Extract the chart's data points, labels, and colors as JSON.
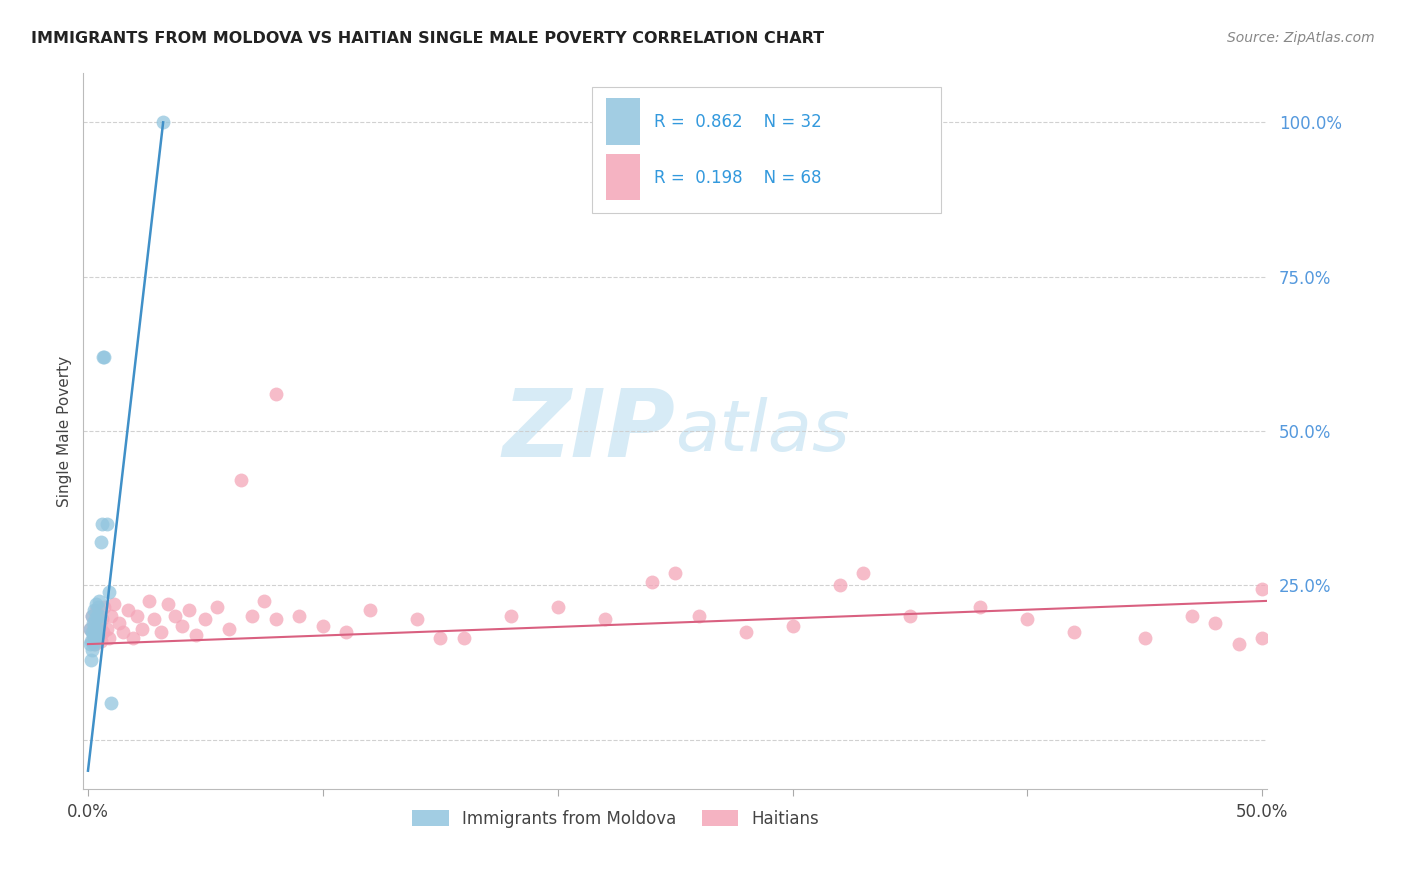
{
  "title": "IMMIGRANTS FROM MOLDOVA VS HAITIAN SINGLE MALE POVERTY CORRELATION CHART",
  "source": "Source: ZipAtlas.com",
  "ylabel": "Single Male Poverty",
  "xlim": [
    -0.002,
    0.502
  ],
  "ylim": [
    -0.08,
    1.08
  ],
  "yticks": [
    0.0,
    0.25,
    0.5,
    0.75,
    1.0
  ],
  "ytick_labels": [
    "",
    "25.0%",
    "50.0%",
    "75.0%",
    "100.0%"
  ],
  "xticks": [
    0.0,
    0.1,
    0.2,
    0.3,
    0.4,
    0.5
  ],
  "xtick_labels": [
    "0.0%",
    "",
    "",
    "",
    "",
    "50.0%"
  ],
  "blue_color": "#92c5de",
  "pink_color": "#f4a6b8",
  "blue_line_color": "#4090c8",
  "pink_line_color": "#d96080",
  "watermark_color": "#d0e8f5",
  "moldova_x": [
    0.0008,
    0.001,
    0.0012,
    0.0014,
    0.0015,
    0.0016,
    0.0018,
    0.002,
    0.0022,
    0.0024,
    0.0025,
    0.0026,
    0.0028,
    0.003,
    0.0032,
    0.0034,
    0.0036,
    0.0038,
    0.004,
    0.0042,
    0.0044,
    0.0046,
    0.0048,
    0.005,
    0.0055,
    0.006,
    0.0065,
    0.007,
    0.008,
    0.009,
    0.01,
    0.032
  ],
  "moldova_y": [
    0.18,
    0.155,
    0.13,
    0.16,
    0.2,
    0.175,
    0.145,
    0.17,
    0.19,
    0.155,
    0.21,
    0.18,
    0.165,
    0.195,
    0.175,
    0.22,
    0.16,
    0.2,
    0.18,
    0.215,
    0.17,
    0.19,
    0.225,
    0.2,
    0.32,
    0.35,
    0.62,
    0.62,
    0.35,
    0.24,
    0.06,
    1.0
  ],
  "haiti_x": [
    0.001,
    0.0015,
    0.0018,
    0.0022,
    0.0025,
    0.0028,
    0.0032,
    0.0035,
    0.004,
    0.0045,
    0.005,
    0.0055,
    0.006,
    0.0065,
    0.007,
    0.008,
    0.009,
    0.01,
    0.011,
    0.013,
    0.015,
    0.017,
    0.019,
    0.021,
    0.023,
    0.026,
    0.028,
    0.031,
    0.034,
    0.037,
    0.04,
    0.043,
    0.046,
    0.05,
    0.055,
    0.06,
    0.065,
    0.07,
    0.075,
    0.08,
    0.09,
    0.1,
    0.11,
    0.12,
    0.14,
    0.16,
    0.18,
    0.2,
    0.22,
    0.24,
    0.26,
    0.28,
    0.3,
    0.32,
    0.35,
    0.38,
    0.4,
    0.42,
    0.45,
    0.47,
    0.48,
    0.49,
    0.5,
    0.5,
    0.33,
    0.25,
    0.15,
    0.08
  ],
  "haiti_y": [
    0.18,
    0.16,
    0.2,
    0.175,
    0.19,
    0.155,
    0.21,
    0.18,
    0.17,
    0.2,
    0.185,
    0.16,
    0.195,
    0.175,
    0.215,
    0.18,
    0.165,
    0.2,
    0.22,
    0.19,
    0.175,
    0.21,
    0.165,
    0.2,
    0.18,
    0.225,
    0.195,
    0.175,
    0.22,
    0.2,
    0.185,
    0.21,
    0.17,
    0.195,
    0.215,
    0.18,
    0.42,
    0.2,
    0.225,
    0.195,
    0.2,
    0.185,
    0.175,
    0.21,
    0.195,
    0.165,
    0.2,
    0.215,
    0.195,
    0.255,
    0.2,
    0.175,
    0.185,
    0.25,
    0.2,
    0.215,
    0.195,
    0.175,
    0.165,
    0.2,
    0.19,
    0.155,
    0.165,
    0.245,
    0.27,
    0.27,
    0.165,
    0.56
  ],
  "mol_line_x": [
    0.0,
    0.032
  ],
  "mol_line_y": [
    -0.05,
    1.0
  ],
  "hai_line_x": [
    0.0,
    0.502
  ],
  "hai_line_y": [
    0.155,
    0.225
  ]
}
